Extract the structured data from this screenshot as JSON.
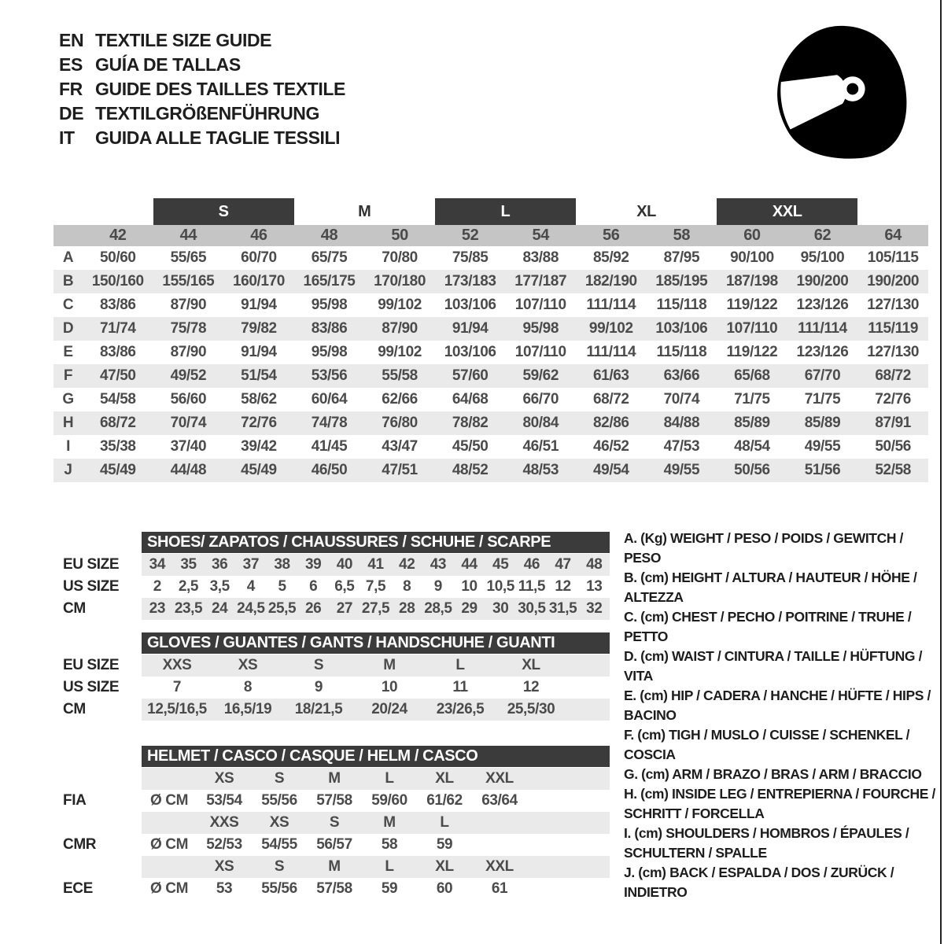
{
  "colors": {
    "dark_bar": "#3b3b3b",
    "numeric_header_gray": "#c5c5c5",
    "alt_row_gray": "#eaeaea",
    "text_dark": "#1d1d1d",
    "text_gray": "#4b4b4b"
  },
  "header": {
    "languages": [
      {
        "code": "EN",
        "title": "TEXTILE SIZE GUIDE"
      },
      {
        "code": "ES",
        "title": "GUÍA DE TALLAS"
      },
      {
        "code": "FR",
        "title": "GUIDE DES TAILLES TEXTILE"
      },
      {
        "code": "DE",
        "title": "TEXTILGRÖßENFÜHRUNG"
      },
      {
        "code": "IT",
        "title": "GUIDA ALLE TAGLIE TESSILI"
      }
    ],
    "icon": "racing-helmet-icon"
  },
  "main_size_table": {
    "size_bands": [
      {
        "label": "S",
        "dark": true
      },
      {
        "label": "M",
        "dark": false
      },
      {
        "label": "L",
        "dark": true
      },
      {
        "label": "XL",
        "dark": false
      },
      {
        "label": "XXL",
        "dark": true
      }
    ],
    "numeric_sizes": [
      "42",
      "44",
      "46",
      "48",
      "50",
      "52",
      "54",
      "56",
      "58",
      "60",
      "62",
      "64"
    ],
    "rows": [
      {
        "label": "A",
        "values": [
          "50/60",
          "55/65",
          "60/70",
          "65/75",
          "70/80",
          "75/85",
          "83/88",
          "85/92",
          "87/95",
          "90/100",
          "95/100",
          "105/115"
        ]
      },
      {
        "label": "B",
        "values": [
          "150/160",
          "155/165",
          "160/170",
          "165/175",
          "170/180",
          "173/183",
          "177/187",
          "182/190",
          "185/195",
          "187/198",
          "190/200",
          "190/200"
        ]
      },
      {
        "label": "C",
        "values": [
          "83/86",
          "87/90",
          "91/94",
          "95/98",
          "99/102",
          "103/106",
          "107/110",
          "111/114",
          "115/118",
          "119/122",
          "123/126",
          "127/130"
        ]
      },
      {
        "label": "D",
        "values": [
          "71/74",
          "75/78",
          "79/82",
          "83/86",
          "87/90",
          "91/94",
          "95/98",
          "99/102",
          "103/106",
          "107/110",
          "111/114",
          "115/119"
        ]
      },
      {
        "label": "E",
        "values": [
          "83/86",
          "87/90",
          "91/94",
          "95/98",
          "99/102",
          "103/106",
          "107/110",
          "111/114",
          "115/118",
          "119/122",
          "123/126",
          "127/130"
        ]
      },
      {
        "label": "F",
        "values": [
          "47/50",
          "49/52",
          "51/54",
          "53/56",
          "55/58",
          "57/60",
          "59/62",
          "61/63",
          "63/66",
          "65/68",
          "67/70",
          "68/72"
        ]
      },
      {
        "label": "G",
        "values": [
          "54/58",
          "56/60",
          "58/62",
          "60/64",
          "62/66",
          "64/68",
          "66/70",
          "68/72",
          "70/74",
          "71/75",
          "71/75",
          "72/76"
        ]
      },
      {
        "label": "H",
        "values": [
          "68/72",
          "70/74",
          "72/76",
          "74/78",
          "76/80",
          "78/82",
          "80/84",
          "82/86",
          "84/88",
          "85/89",
          "85/89",
          "87/91"
        ]
      },
      {
        "label": "I",
        "values": [
          "35/38",
          "37/40",
          "39/42",
          "41/45",
          "43/47",
          "45/50",
          "46/51",
          "46/52",
          "47/53",
          "48/54",
          "49/55",
          "50/56"
        ]
      },
      {
        "label": "J",
        "values": [
          "45/49",
          "44/48",
          "45/49",
          "46/50",
          "47/51",
          "48/52",
          "48/53",
          "49/54",
          "49/55",
          "50/56",
          "51/56",
          "52/58"
        ]
      }
    ]
  },
  "shoes_table": {
    "title": "SHOES/ ZAPATOS / CHAUSSURES / SCHUHE / SCARPE",
    "rows": [
      {
        "label": "EU SIZE",
        "values": [
          "34",
          "35",
          "36",
          "37",
          "38",
          "39",
          "40",
          "41",
          "42",
          "43",
          "44",
          "45",
          "46",
          "47",
          "48"
        ]
      },
      {
        "label": "US SIZE",
        "values": [
          "2",
          "2,5",
          "3,5",
          "4",
          "5",
          "6",
          "6,5",
          "7,5",
          "8",
          "9",
          "10",
          "10,5",
          "11,5",
          "12",
          "13"
        ]
      },
      {
        "label": "CM",
        "values": [
          "23",
          "23,5",
          "24",
          "24,5",
          "25,5",
          "26",
          "27",
          "27,5",
          "28",
          "28,5",
          "29",
          "30",
          "30,5",
          "31,5",
          "32"
        ]
      }
    ]
  },
  "gloves_table": {
    "title": "GLOVES / GUANTES / GANTS / HANDSCHUHE / GUANTI",
    "rows": [
      {
        "label": "EU SIZE",
        "values": [
          "XXS",
          "XS",
          "S",
          "M",
          "L",
          "XL"
        ]
      },
      {
        "label": "US SIZE",
        "values": [
          "7",
          "8",
          "9",
          "10",
          "11",
          "12"
        ]
      },
      {
        "label": "CM",
        "values": [
          "12,5/16,5",
          "16,5/19",
          "18/21,5",
          "20/24",
          "23/26,5",
          "25,5/30"
        ]
      }
    ]
  },
  "helmet_table": {
    "title": "HELMET / CASCO / CASQUE / HELM / CASCO",
    "sections": [
      {
        "agency": "FIA",
        "unit_label": "Ø CM",
        "size_header": [
          "XS",
          "S",
          "M",
          "L",
          "XL",
          "XXL"
        ],
        "values": [
          "53/54",
          "55/56",
          "57/58",
          "59/60",
          "61/62",
          "63/64"
        ]
      },
      {
        "agency": "CMR",
        "unit_label": "Ø CM",
        "size_header": [
          "XXS",
          "XS",
          "S",
          "M",
          "L"
        ],
        "values": [
          "52/53",
          "54/55",
          "56/57",
          "58",
          "59"
        ]
      },
      {
        "agency": "ECE",
        "unit_label": "Ø CM",
        "size_header": [
          "XS",
          "S",
          "M",
          "L",
          "XL",
          "XXL"
        ],
        "values": [
          "53",
          "55/56",
          "57/58",
          "59",
          "60",
          "61"
        ]
      }
    ]
  },
  "legend": {
    "items": [
      "A. (Kg) WEIGHT / PESO / POIDS / GEWITCH / PESO",
      "B. (cm) HEIGHT / ALTURA / HAUTEUR / HÖHE / ALTEZZA",
      "C. (cm) CHEST / PECHO / POITRINE / TRUHE / PETTO",
      "D. (cm) WAIST / CINTURA / TAILLE / HÜFTUNG / VITA",
      "E. (cm) HIP / CADERA / HANCHE / HÜFTE / HIPS / BACINO",
      "F. (cm) TIGH / MUSLO / CUISSE / SCHENKEL / COSCIA",
      "G. (cm) ARM / BRAZO / BRAS / ARM / BRACCIO",
      "H. (cm) INSIDE LEG / ENTREPIERNA / FOURCHE / SCHRITT / FORCELLA",
      "I. (cm) SHOULDERS / HOMBROS / ÉPAULES / SCHULTERN / SPALLE",
      "J. (cm) BACK / ESPALDA / DOS / ZURÜCK / INDIETRO"
    ]
  }
}
